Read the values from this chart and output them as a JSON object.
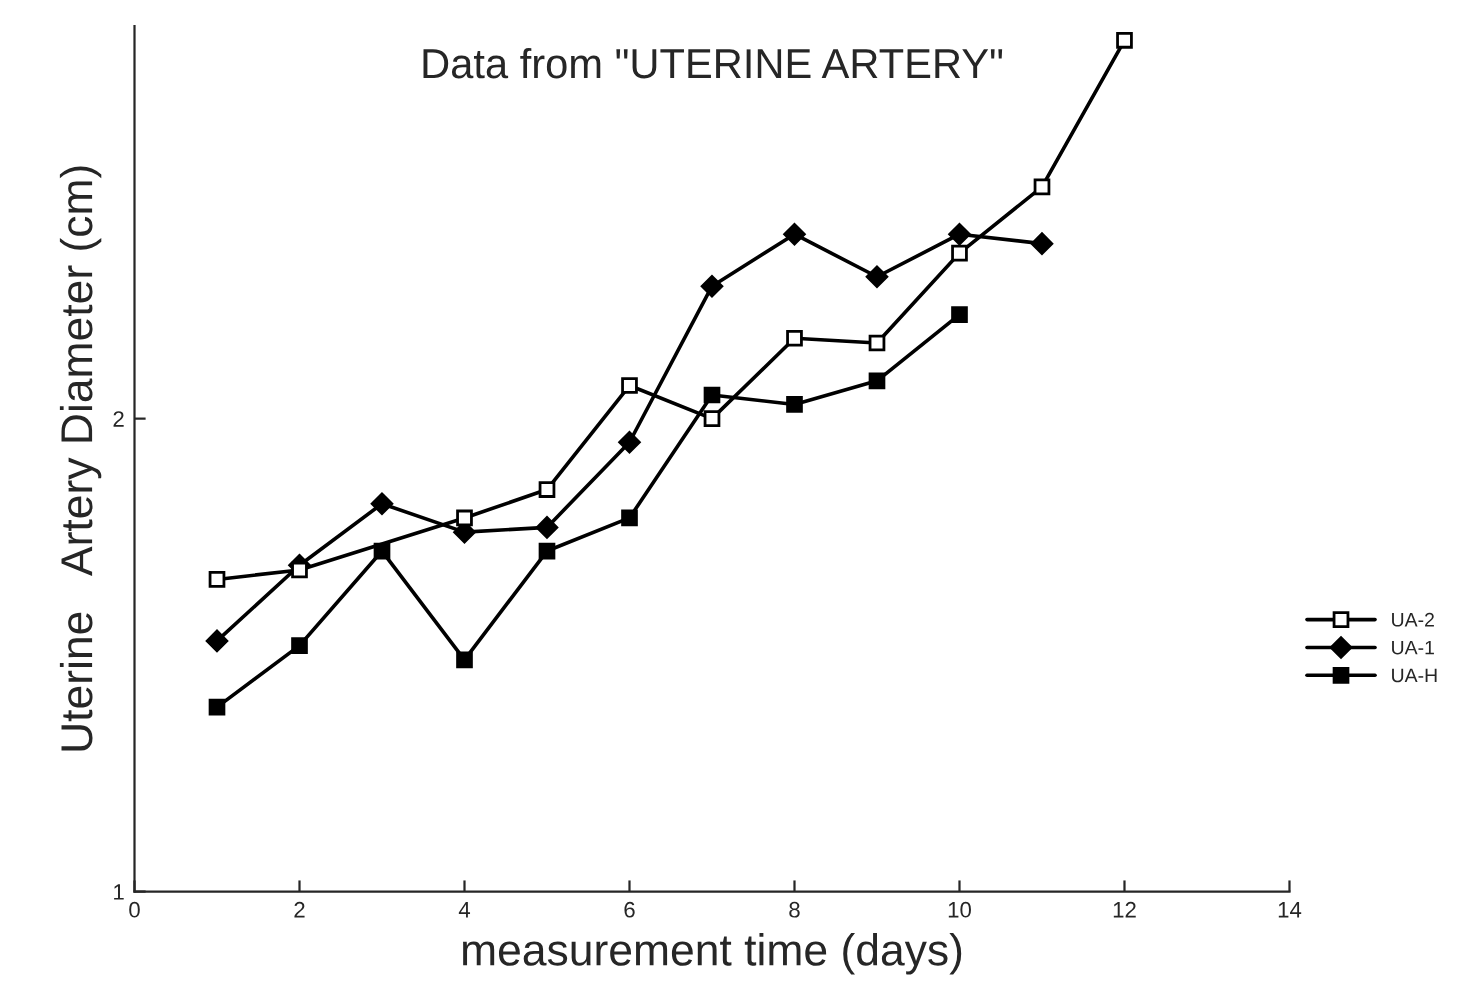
{
  "chart_data": {
    "type": "line",
    "title": "Data from \"UTERINE ARTERY\"",
    "xlabel": "measurement time (days)",
    "ylabel": "Uterine   Artery Diameter (cm)",
    "series": [
      {
        "name": "UA-2",
        "color": "#000000",
        "marker": "square",
        "x": [
          1,
          2,
          4,
          5,
          6,
          7,
          8,
          9,
          10,
          11,
          12
        ],
        "values": [
          1.66,
          1.68,
          1.79,
          1.85,
          2.07,
          2.0,
          2.17,
          2.16,
          2.35,
          2.49,
          2.8
        ]
      },
      {
        "name": "UA-1",
        "color": "#000000",
        "marker": "diamond",
        "x": [
          1,
          2,
          3,
          4,
          5,
          6,
          7,
          8,
          9,
          10,
          11
        ],
        "values": [
          1.53,
          1.69,
          1.82,
          1.76,
          1.77,
          1.95,
          2.28,
          2.39,
          2.3,
          2.39,
          2.37
        ]
      },
      {
        "name": "UA-H",
        "color": "#000000",
        "marker": "square",
        "x": [
          1,
          2,
          3,
          4,
          5,
          6,
          7,
          8,
          9,
          10
        ],
        "values": [
          1.39,
          1.52,
          1.72,
          1.49,
          1.72,
          1.79,
          2.05,
          2.03,
          2.08,
          2.22
        ]
      }
    ],
    "xlim": [
      0,
      14
    ],
    "xticks": [
      0,
      2,
      4,
      6,
      8,
      10,
      12,
      14
    ],
    "ylim": [
      1,
      2.83
    ],
    "yticks": [
      1,
      2
    ],
    "grid": false,
    "legend": "right",
    "line_style": "solid"
  }
}
